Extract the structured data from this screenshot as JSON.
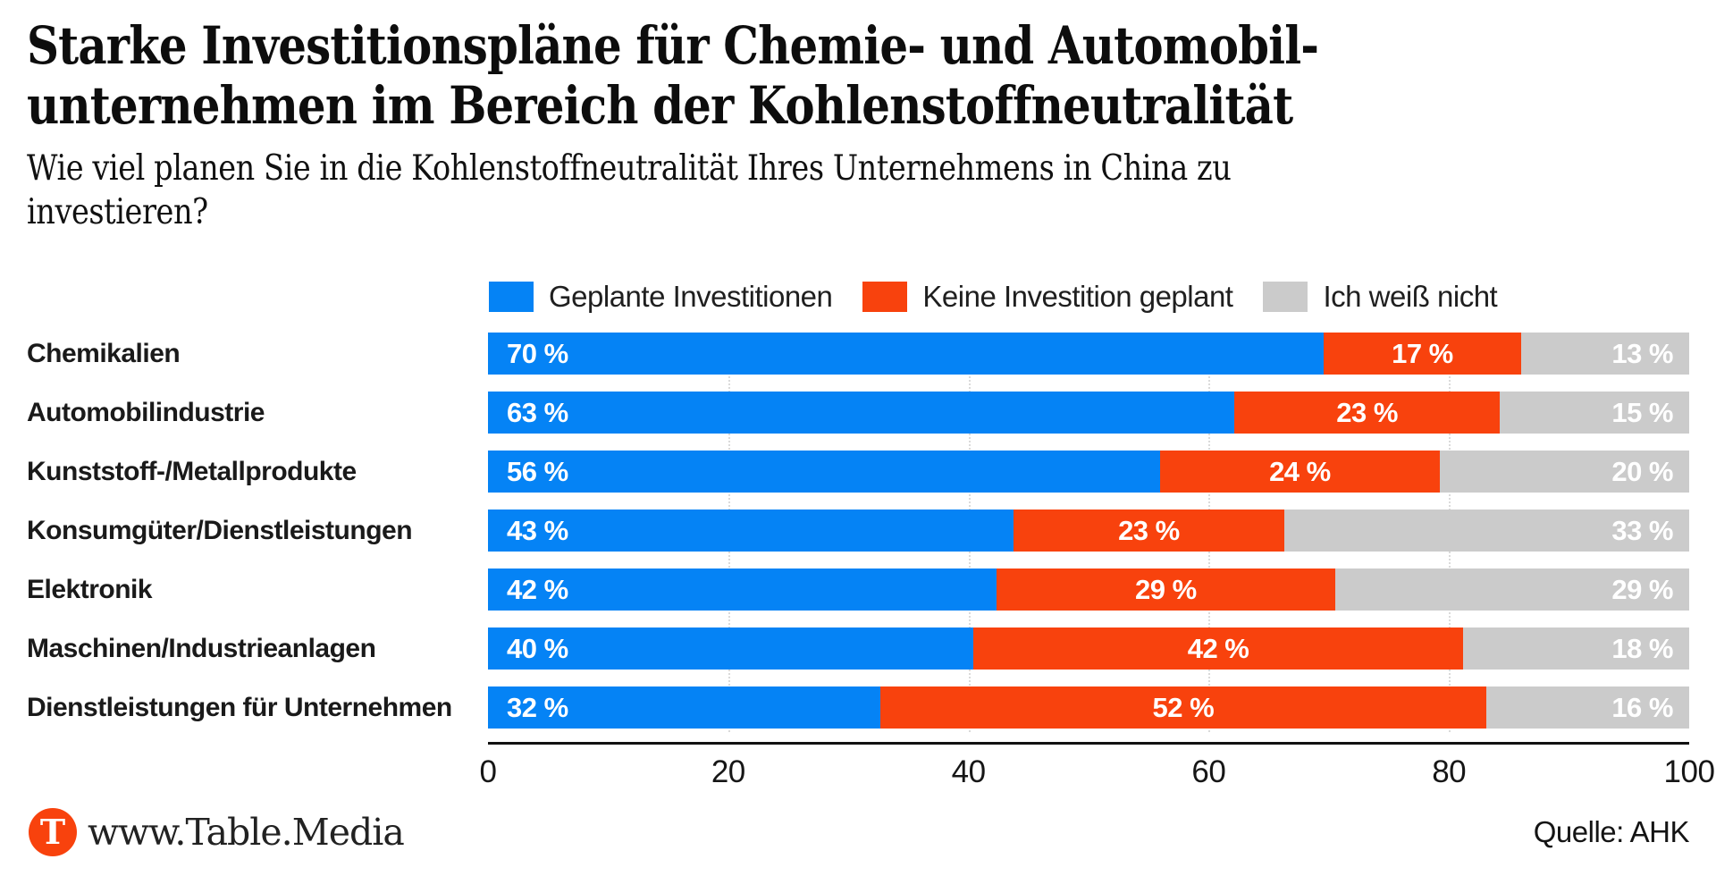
{
  "header": {
    "title": "Starke Investitionspläne für Chemie- und Automobil-\nunternehmen im Bereich der Kohlenstoffneutralität",
    "subtitle": "Wie viel planen Sie in die Kohlenstoffneutralität Ihres Unternehmens in China zu\ninvestieren?"
  },
  "legend": {
    "items": [
      {
        "label": "Geplante Investitionen",
        "color": "#0583F5"
      },
      {
        "label": "Keine Investition geplant",
        "color": "#F8420D"
      },
      {
        "label": "Ich weiß nicht",
        "color": "#CBCBCB"
      }
    ]
  },
  "chart_data": {
    "type": "bar",
    "stacked": true,
    "orientation": "horizontal",
    "categories": [
      "Chemikalien",
      "Automobilindustrie",
      "Kunststoff-/Metallprodukte",
      "Konsumgüter/Dienstleistungen",
      "Elektronik",
      "Maschinen/Industrieanlagen",
      "Dienstleistungen für Unternehmen"
    ],
    "series": [
      {
        "name": "Geplante Investitionen",
        "color": "#0583F5",
        "values": [
          70,
          63,
          56,
          43,
          42,
          40,
          32
        ]
      },
      {
        "name": "Keine Investition geplant",
        "color": "#F8420D",
        "values": [
          17,
          23,
          24,
          23,
          29,
          42,
          52
        ]
      },
      {
        "name": "Ich weiß nicht",
        "color": "#CBCBCB",
        "values": [
          13,
          15,
          20,
          33,
          29,
          18,
          16
        ]
      }
    ],
    "value_suffix": " %",
    "xlim": [
      0,
      100
    ],
    "x_ticks": [
      0,
      20,
      40,
      60,
      80,
      100
    ],
    "gridlines": [
      20,
      40,
      60,
      80
    ],
    "grid_style": "dotted",
    "legend_position": "top"
  },
  "footer": {
    "logo_letter": "T",
    "logo_color": "#F8420D",
    "brand": "www.Table.Media",
    "source": "Quelle: AHK"
  }
}
